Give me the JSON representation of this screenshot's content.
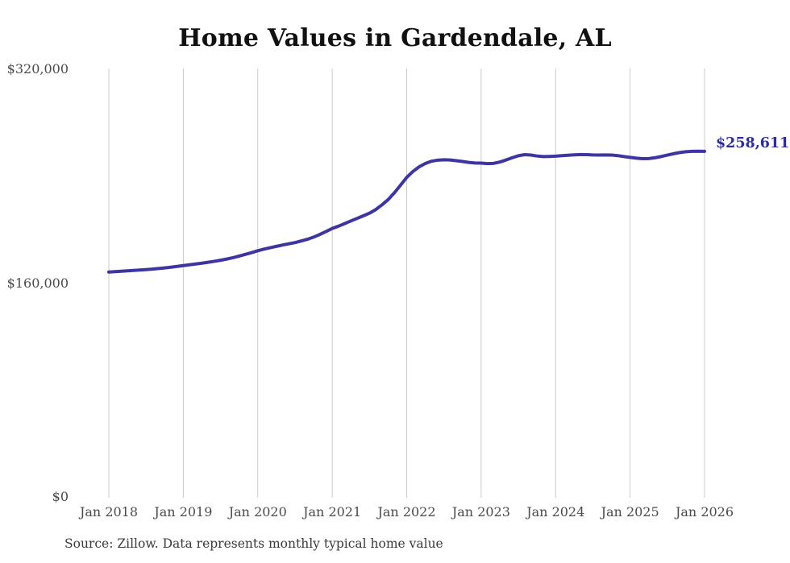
{
  "chart_data": {
    "type": "line",
    "title": "Home Values in Gardendale, AL",
    "source": "Source: Zillow. Data represents monthly typical home value",
    "x_interval": "monthly",
    "x_start": "Jan 2018",
    "x_end": "Jan 2026",
    "x_tick_labels": [
      "Jan 2018",
      "Jan 2019",
      "Jan 2020",
      "Jan 2021",
      "Jan 2022",
      "Jan 2023",
      "Jan 2024",
      "Jan 2025",
      "Jan 2026"
    ],
    "y_tick_labels": [
      "$320,000",
      "$160,000",
      "$0"
    ],
    "ylim": [
      0,
      320000
    ],
    "grid": "vertical-only",
    "legend": "none",
    "series": [
      {
        "name": "Monthly typical home value",
        "final_value": 258611,
        "final_value_label": "$258,611",
        "values": [
          168300,
          168600,
          168900,
          169200,
          169500,
          169800,
          170100,
          170500,
          170900,
          171400,
          171900,
          172500,
          173100,
          173700,
          174300,
          174900,
          175600,
          176300,
          177100,
          178000,
          179000,
          180200,
          181500,
          182800,
          184200,
          185400,
          186500,
          187500,
          188500,
          189400,
          190300,
          191500,
          192800,
          194400,
          196400,
          198600,
          200900,
          202600,
          204500,
          206500,
          208400,
          210300,
          212300,
          215000,
          218500,
          222400,
          227500,
          233200,
          239100,
          243500,
          247000,
          249500,
          251200,
          252000,
          252300,
          252100,
          251600,
          251000,
          250300,
          249900,
          249800,
          249400,
          249600,
          250600,
          252100,
          253800,
          255300,
          256100,
          255800,
          255100,
          254700,
          254800,
          255000,
          255400,
          255700,
          256000,
          256200,
          256100,
          255900,
          255800,
          255900,
          255800,
          255400,
          254700,
          254100,
          253500,
          253100,
          253200,
          253800,
          254700,
          255800,
          256800,
          257700,
          258300,
          258600,
          258700,
          258611
        ]
      }
    ],
    "colors": {
      "line": "#3d35a0",
      "end_label": "#2e2d9b",
      "grid": "#cbcbcb",
      "axis_text": "#4a4a4a",
      "title_text": "#111111",
      "source_text": "#3a3a3a"
    }
  }
}
